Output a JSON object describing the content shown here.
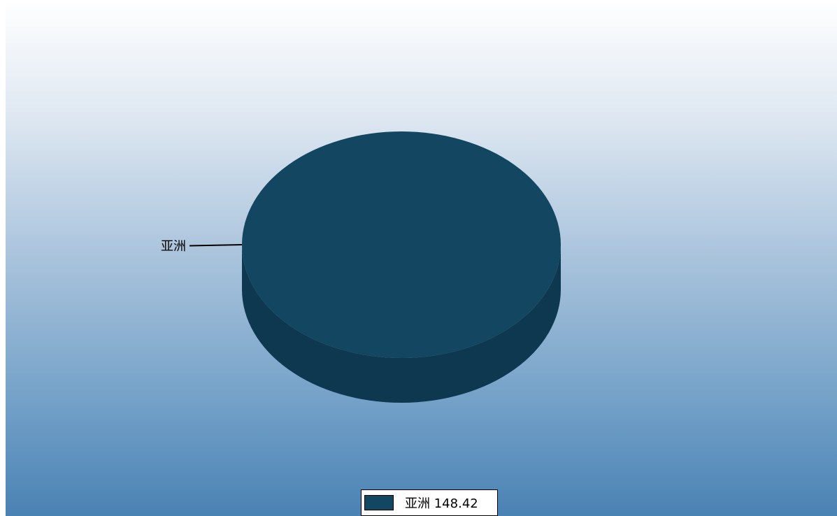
{
  "chart_data": {
    "type": "pie",
    "style": "3d",
    "slices": [
      {
        "label": "亚洲",
        "value": 148.42,
        "color": "#134660",
        "side_color": "#0e3850"
      }
    ],
    "legend": {
      "placement": "bottom-center"
    }
  },
  "colors": {
    "background_top": "#ffffff",
    "background_bottom": "#4a82b4",
    "legend_bg": "#ffffff"
  }
}
